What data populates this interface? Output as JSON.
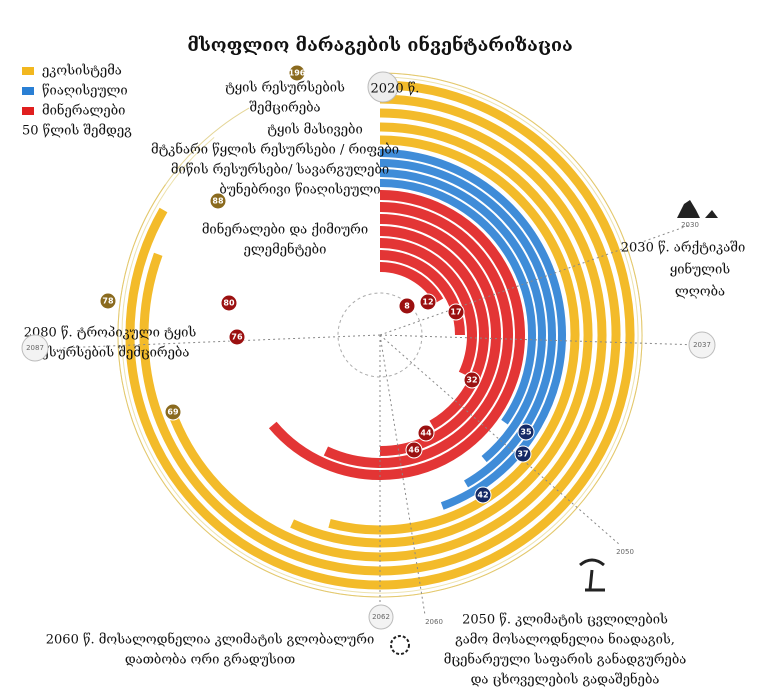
{
  "title": "მსოფლიო მარაგების ინვენტარიზაცია",
  "legend": [
    "ეკოსისტემა",
    "წიაღისეული",
    "მინერალები",
    "50 წლის შემდეგ"
  ],
  "start_year": "2020 წ.",
  "ring_labels": [
    "ტყის რესურსების",
    "შემცირება",
    "ტყის მასივები",
    "მტკნარი წყლის რესურსები / რიფები",
    "მიწის რესურსები/ სავარგულები",
    "ბუნებრივი წიაღისეული",
    "მინერალები და ქიმიური",
    "ელემენტები"
  ],
  "annotations": {
    "arctic": [
      "2030 წ. არქტიკაში",
      "ყინულის",
      "ლღობა"
    ],
    "tropical": [
      "2080 წ. ტროპიკული ტყის",
      "რესურსების შემცირება"
    ],
    "climate": [
      "2050 წ. კლიმატის ცვლილების",
      "გამო მოსალოდნელია ნიადაგის,",
      "მცენარეული საფარის განადგურება",
      "და ცხოველების გადაშენება"
    ],
    "warming": [
      "2060 წ. მოსალოდნელია კლიმატის გლობალური",
      "დათბობა ორი გრადუსით"
    ]
  },
  "year_markers": [
    "2087",
    "2037",
    "2050",
    "2062",
    "2060",
    "2030"
  ],
  "badges": {
    "ecosystem": [
      "196",
      "88",
      "78",
      "69"
    ],
    "minerals": [
      "8",
      "12",
      "17",
      "32",
      "44",
      "46",
      "80",
      "76"
    ],
    "fossil": [
      "35",
      "37",
      "42"
    ]
  }
}
